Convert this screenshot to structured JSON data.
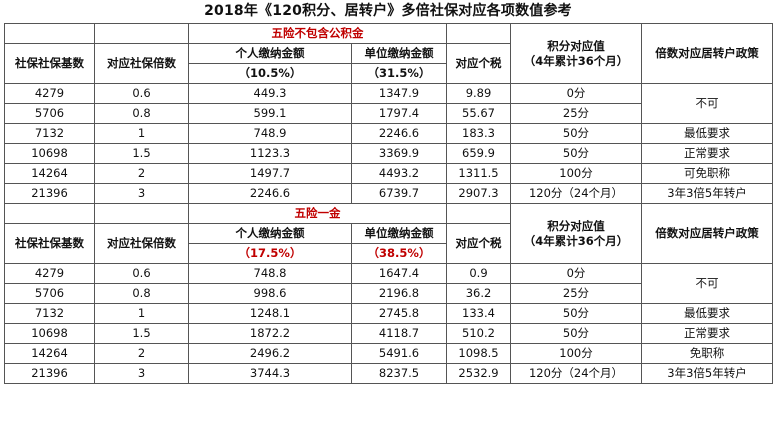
{
  "title": "2018年《120积分、居转户》多倍社保对应各项数值参考",
  "headers": {
    "base": "社保社保基数",
    "multiple": "对应社保倍数",
    "personal": "个人缴纳金额",
    "unit": "单位缴纳金额",
    "tax": "对应个税",
    "points_line1": "积分对应值",
    "points_line2": "（4年累计36个月）",
    "policy": "倍数对应居转户政策"
  },
  "sections": [
    {
      "label": "五险不包含公积金",
      "personal_rate": "（10.5%）",
      "unit_rate": "（31.5%）",
      "rows": [
        {
          "base": "4279",
          "multiple": "0.6",
          "personal": "449.3",
          "unit": "1347.9",
          "tax": "9.89",
          "points": "0分"
        },
        {
          "base": "5706",
          "multiple": "0.8",
          "personal": "599.1",
          "unit": "1797.4",
          "tax": "55.67",
          "points": "25分"
        },
        {
          "base": "7132",
          "multiple": "1",
          "personal": "748.9",
          "unit": "2246.6",
          "tax": "183.3",
          "points": "50分"
        },
        {
          "base": "10698",
          "multiple": "1.5",
          "personal": "1123.3",
          "unit": "3369.9",
          "tax": "659.9",
          "points": "50分"
        },
        {
          "base": "14264",
          "multiple": "2",
          "personal": "1497.7",
          "unit": "4493.2",
          "tax": "1311.5",
          "points": "100分"
        },
        {
          "base": "21396",
          "multiple": "3",
          "personal": "2246.6",
          "unit": "6739.7",
          "tax": "2907.3",
          "points": "120分（24个月）"
        }
      ],
      "policies": [
        "不可",
        "最低要求",
        "正常要求",
        "可免职称",
        "3年3倍5年转户"
      ]
    },
    {
      "label": "五险一金",
      "personal_rate": "（17.5%）",
      "unit_rate": "（38.5%）",
      "rows": [
        {
          "base": "4279",
          "multiple": "0.6",
          "personal": "748.8",
          "unit": "1647.4",
          "tax": "0.9",
          "points": "0分"
        },
        {
          "base": "5706",
          "multiple": "0.8",
          "personal": "998.6",
          "unit": "2196.8",
          "tax": "36.2",
          "points": "25分"
        },
        {
          "base": "7132",
          "multiple": "1",
          "personal": "1248.1",
          "unit": "2745.8",
          "tax": "133.4",
          "points": "50分"
        },
        {
          "base": "10698",
          "multiple": "1.5",
          "personal": "1872.2",
          "unit": "4118.7",
          "tax": "510.2",
          "points": "50分"
        },
        {
          "base": "14264",
          "multiple": "2",
          "personal": "2496.2",
          "unit": "5491.6",
          "tax": "1098.5",
          "points": "100分"
        },
        {
          "base": "21396",
          "multiple": "3",
          "personal": "3744.3",
          "unit": "8237.5",
          "tax": "2532.9",
          "points": "120分（24个月）"
        }
      ],
      "policies": [
        "不可",
        "最低要求",
        "正常要求",
        "免职称",
        "3年3倍5年转户"
      ]
    }
  ]
}
